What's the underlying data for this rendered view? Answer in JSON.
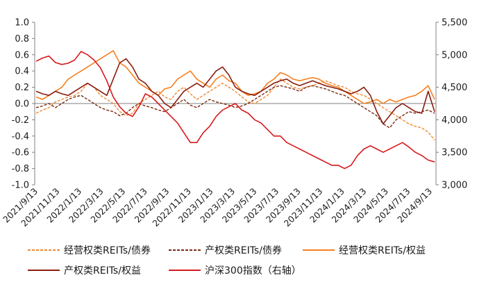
{
  "chart_data": {
    "type": "line",
    "y_left": {
      "range": [
        -1.0,
        1.0
      ],
      "ticks": [
        "1.0",
        "0.8",
        "0.6",
        "0.4",
        "0.2",
        "0.0",
        "-0.2",
        "-0.4",
        "-0.6",
        "-0.8",
        "-1.0"
      ]
    },
    "y_right": {
      "range": [
        3000,
        5500
      ],
      "ticks": [
        "5,500",
        "5,000",
        "4,500",
        "4,000",
        "3,500",
        "3,000"
      ]
    },
    "x_ticks": [
      "2021/9/13",
      "2021/11/13",
      "2022/1/13",
      "2022/3/13",
      "2022/5/13",
      "2022/7/13",
      "2022/9/13",
      "2022/11/13",
      "2023/1/13",
      "2023/3/13",
      "2023/5/13",
      "2023/7/13",
      "2023/9/13",
      "2023/11/13",
      "2024/1/13",
      "2024/3/13",
      "2024/5/13",
      "2024/7/13",
      "2024/9/13"
    ],
    "series": [
      {
        "name": "经营权类REITs/债券",
        "axis": "left",
        "color": "#F08A32",
        "dash": "dashed",
        "values": [
          -0.12,
          -0.08,
          -0.05,
          0.02,
          0.05,
          0.08,
          0.1,
          0.15,
          0.25,
          0.2,
          0.1,
          0.05,
          0.0,
          -0.1,
          -0.15,
          -0.12,
          0.0,
          0.05,
          0.1,
          0.15,
          0.08,
          0.05,
          0.15,
          0.2,
          0.12,
          0.05,
          0.1,
          0.15,
          0.2,
          0.25,
          0.2,
          0.15,
          0.08,
          0.02,
          0.0,
          0.05,
          0.1,
          0.2,
          0.3,
          0.25,
          0.2,
          0.18,
          0.2,
          0.22,
          0.25,
          0.28,
          0.25,
          0.22,
          0.2,
          0.15,
          0.12,
          0.1,
          0.05,
          0.0,
          -0.05,
          -0.1,
          -0.15,
          -0.2,
          -0.25,
          -0.28,
          -0.3,
          -0.35,
          -0.45
        ]
      },
      {
        "name": "产权类REITs/债券",
        "axis": "left",
        "color": "#7A2A12",
        "dash": "dashed",
        "values": [
          -0.05,
          -0.03,
          0.0,
          -0.05,
          0.0,
          0.05,
          0.08,
          0.1,
          0.05,
          0.0,
          -0.05,
          -0.08,
          -0.1,
          -0.15,
          -0.12,
          -0.05,
          0.0,
          -0.03,
          -0.05,
          -0.08,
          -0.1,
          -0.05,
          0.0,
          0.05,
          -0.02,
          -0.05,
          0.0,
          0.05,
          0.02,
          0.0,
          -0.02,
          -0.05,
          -0.03,
          0.0,
          0.05,
          0.1,
          0.15,
          0.2,
          0.22,
          0.2,
          0.18,
          0.15,
          0.2,
          0.22,
          0.2,
          0.18,
          0.15,
          0.12,
          0.1,
          0.05,
          0.0,
          -0.05,
          -0.1,
          -0.15,
          -0.25,
          -0.3,
          -0.2,
          -0.15,
          -0.1,
          -0.12,
          -0.1,
          -0.08,
          -0.12
        ]
      },
      {
        "name": "经营权类REITs/权益",
        "axis": "left",
        "color": "#F57F1E",
        "dash": "solid",
        "values": [
          0.08,
          0.05,
          0.1,
          0.15,
          0.2,
          0.3,
          0.35,
          0.4,
          0.45,
          0.5,
          0.55,
          0.6,
          0.65,
          0.5,
          0.45,
          0.35,
          0.25,
          0.2,
          0.15,
          0.1,
          0.18,
          0.2,
          0.3,
          0.35,
          0.4,
          0.3,
          0.25,
          0.2,
          0.3,
          0.35,
          0.28,
          0.25,
          0.15,
          0.1,
          0.12,
          0.15,
          0.25,
          0.3,
          0.38,
          0.35,
          0.3,
          0.28,
          0.3,
          0.32,
          0.3,
          0.25,
          0.22,
          0.2,
          0.15,
          0.1,
          0.05,
          0.0,
          0.02,
          0.05,
          0.0,
          0.05,
          0.02,
          0.05,
          0.08,
          0.1,
          0.15,
          0.22,
          0.05
        ]
      },
      {
        "name": "产权类REITs/权益",
        "axis": "left",
        "color": "#8A1C0E",
        "dash": "solid",
        "values": [
          0.15,
          0.12,
          0.1,
          0.15,
          0.12,
          0.1,
          0.15,
          0.2,
          0.25,
          0.2,
          0.15,
          0.1,
          0.3,
          0.5,
          0.55,
          0.45,
          0.3,
          0.25,
          0.15,
          0.1,
          0.0,
          -0.05,
          0.05,
          0.15,
          0.2,
          0.25,
          0.2,
          0.3,
          0.4,
          0.45,
          0.35,
          0.2,
          0.15,
          0.12,
          0.1,
          0.15,
          0.2,
          0.25,
          0.28,
          0.3,
          0.25,
          0.22,
          0.25,
          0.28,
          0.25,
          0.22,
          0.2,
          0.18,
          0.15,
          0.12,
          0.15,
          0.2,
          0.1,
          -0.1,
          -0.25,
          -0.15,
          -0.05,
          0.0,
          -0.05,
          -0.1,
          -0.12,
          0.15,
          -0.1
        ]
      },
      {
        "name": "沪深300指数（右轴）",
        "axis": "right",
        "color": "#D7191C",
        "dash": "solid",
        "values": [
          4900,
          4950,
          4980,
          4880,
          4850,
          4870,
          4920,
          5050,
          5000,
          4920,
          4800,
          4600,
          4350,
          4200,
          4100,
          4050,
          4200,
          4400,
          4350,
          4250,
          4150,
          4050,
          3950,
          3800,
          3650,
          3650,
          3800,
          3900,
          4050,
          4150,
          4200,
          4250,
          4150,
          4100,
          4000,
          3950,
          3850,
          3750,
          3750,
          3650,
          3600,
          3550,
          3500,
          3450,
          3400,
          3350,
          3300,
          3300,
          3250,
          3300,
          3450,
          3550,
          3600,
          3550,
          3500,
          3550,
          3600,
          3650,
          3580,
          3500,
          3450,
          3380,
          3350
        ]
      }
    ],
    "legend": [
      "经营权类REITs/债券",
      "产权类REITs/债券",
      "经营权类REITs/权益",
      "产权类REITs/权益",
      "沪深300指数（右轴）"
    ]
  }
}
